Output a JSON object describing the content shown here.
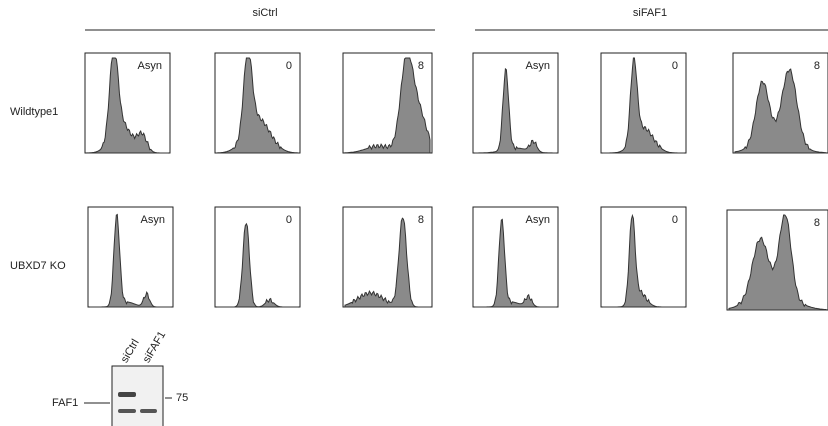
{
  "groups": [
    {
      "label": "siCtrl"
    },
    {
      "label": "siFAF1"
    }
  ],
  "rows": [
    {
      "label": "Wildtype1",
      "panels": [
        "Asyn",
        "0",
        "8",
        "Asyn",
        "0",
        "8"
      ]
    },
    {
      "label": "UBXD7 KO",
      "panels": [
        "Asyn",
        "0",
        "8",
        "Asyn",
        "0",
        "8"
      ]
    }
  ],
  "blot": {
    "lanes": [
      "siCtrl",
      "siFAF1"
    ],
    "protein": "FAF1",
    "marker": "75"
  }
}
